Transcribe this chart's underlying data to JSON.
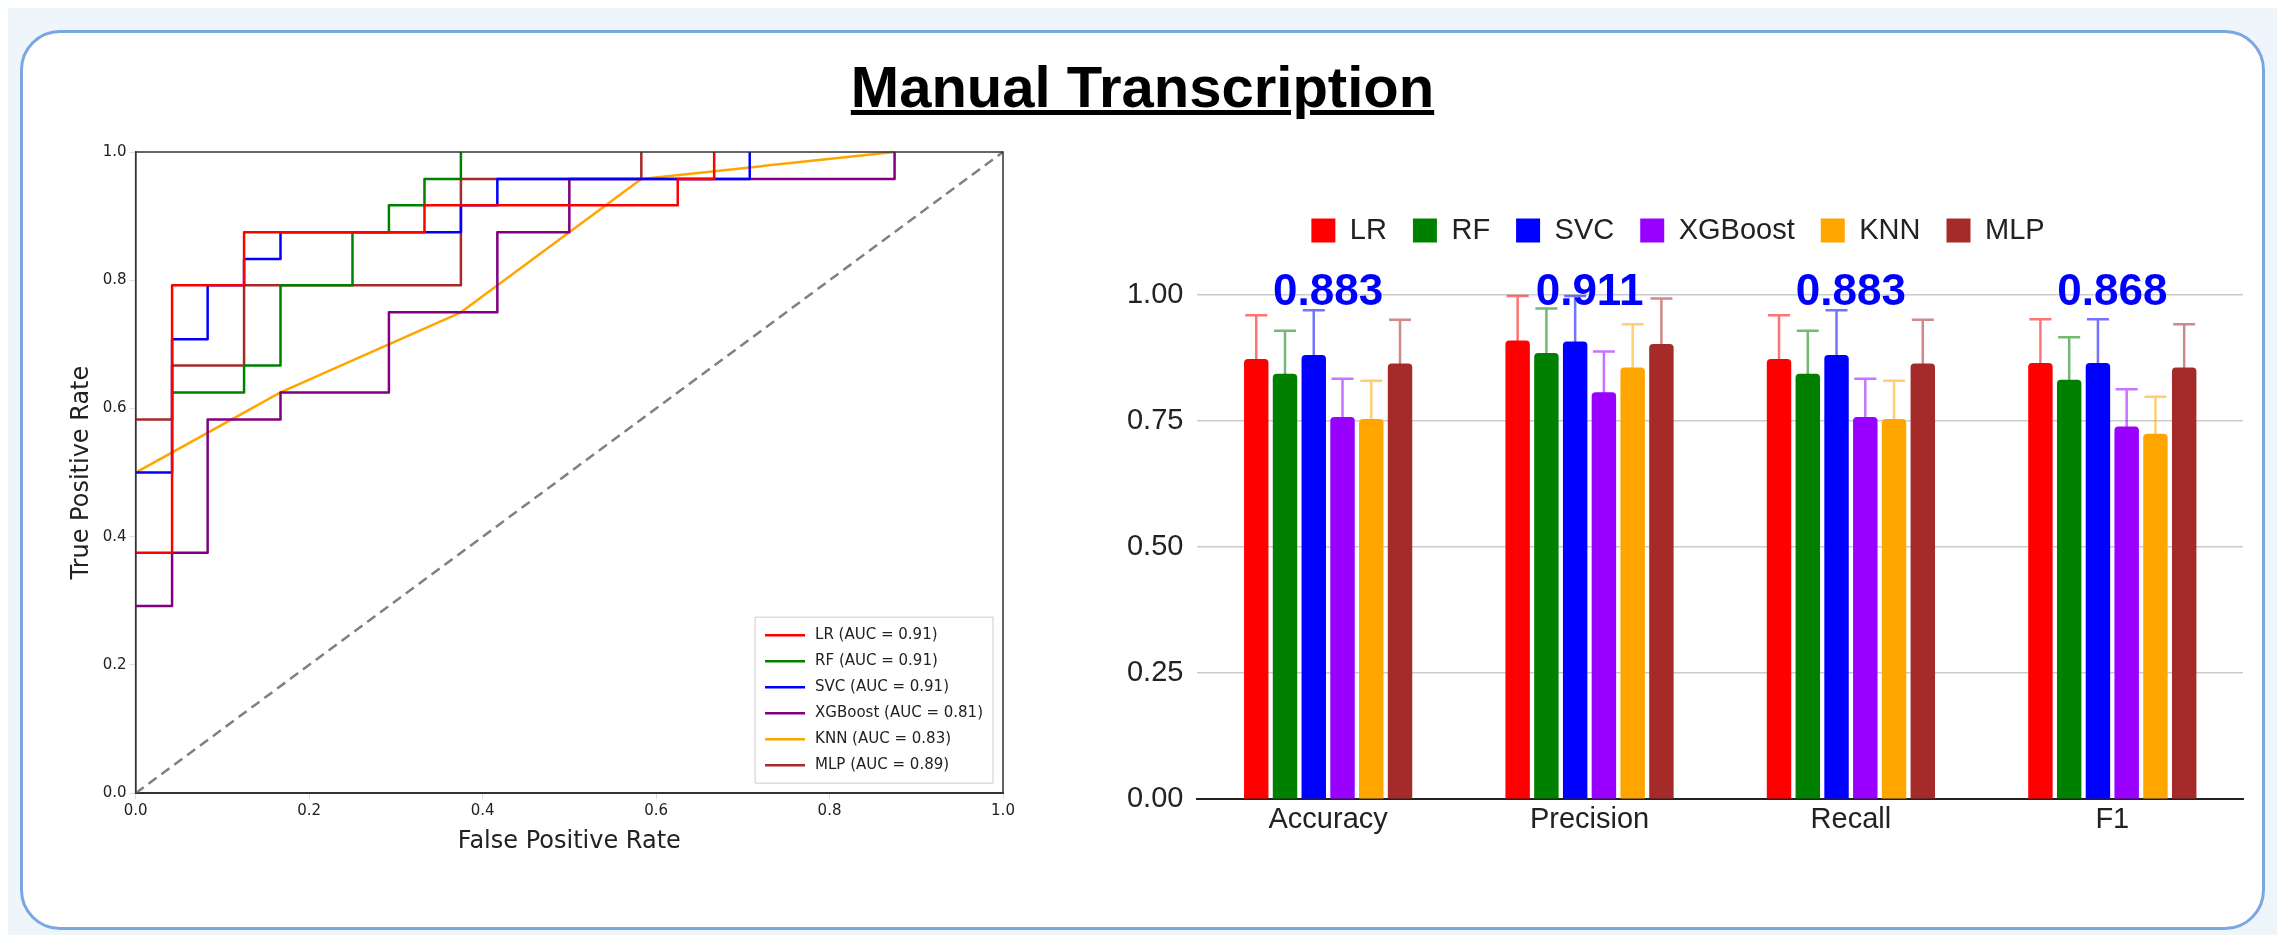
{
  "chart_data": [
    {
      "type": "line",
      "title": "Manual Transcription",
      "xlabel": "False Positive Rate",
      "ylabel": "True Positive Rate",
      "xlim": [
        0,
        1
      ],
      "ylim": [
        0,
        1
      ],
      "xticks": [
        {
          "value": 0,
          "label": "0.0"
        },
        {
          "value": 0.2,
          "label": "0.2"
        },
        {
          "value": 0.4,
          "label": "0.4"
        },
        {
          "value": 0.6,
          "label": "0.6"
        },
        {
          "value": 0.8,
          "label": "0.8"
        },
        {
          "value": 1,
          "label": "1.0"
        }
      ],
      "yticks": [
        {
          "value": 0,
          "label": "0.0"
        },
        {
          "value": 0.2,
          "label": "0.2"
        },
        {
          "value": 0.4,
          "label": "0.4"
        },
        {
          "value": 0.6,
          "label": "0.6"
        },
        {
          "value": 0.8,
          "label": "0.8"
        },
        {
          "value": 1,
          "label": "1.0"
        }
      ],
      "legend": "bottom right",
      "series": [
        {
          "name": "LR (AUC = 0.91)",
          "color": "#ff0000",
          "x": [
            0,
            0.042,
            0.042,
            0.125,
            0.125,
            0.333,
            0.333,
            0.625,
            0.625,
            0.667,
            0.667
          ],
          "values": [
            0.375,
            0.375,
            0.792,
            0.792,
            0.875,
            0.875,
            0.917,
            0.917,
            0.958,
            0.958,
            1
          ]
        },
        {
          "name": "RF (AUC = 0.91)",
          "color": "#008000",
          "x": [
            0.042,
            0.125,
            0.125,
            0.167,
            0.167,
            0.25,
            0.25,
            0.292,
            0.292,
            0.333,
            0.333,
            0.375,
            0.375
          ],
          "values": [
            0.625,
            0.625,
            0.667,
            0.667,
            0.792,
            0.792,
            0.875,
            0.875,
            0.917,
            0.917,
            0.958,
            0.958,
            1
          ]
        },
        {
          "name": "SVC (AUC = 0.91)",
          "color": "#0000ff",
          "x": [
            0,
            0.042,
            0.042,
            0.083,
            0.083,
            0.125,
            0.125,
            0.167,
            0.167,
            0.375,
            0.375,
            0.417,
            0.417,
            0.708,
            0.708
          ],
          "values": [
            0.5,
            0.5,
            0.708,
            0.708,
            0.792,
            0.792,
            0.833,
            0.833,
            0.875,
            0.875,
            0.917,
            0.917,
            0.958,
            0.958,
            1
          ]
        },
        {
          "name": "XGBoost (AUC = 0.81)",
          "color": "#800080",
          "x": [
            0,
            0.042,
            0.042,
            0.083,
            0.083,
            0.167,
            0.167,
            0.292,
            0.292,
            0.417,
            0.417,
            0.5,
            0.5,
            0.875,
            0.875
          ],
          "values": [
            0.292,
            0.292,
            0.375,
            0.375,
            0.583,
            0.583,
            0.625,
            0.625,
            0.75,
            0.75,
            0.875,
            0.875,
            0.958,
            0.958,
            1
          ]
        },
        {
          "name": "KNN (AUC = 0.83)",
          "color": "#ffa500",
          "x": [
            0,
            0.167,
            0.375,
            0.583,
            0.875
          ],
          "values": [
            0.5,
            0.625,
            0.75,
            0.958,
            1
          ]
        },
        {
          "name": "MLP (AUC = 0.89)",
          "color": "#a52a2a",
          "x": [
            0,
            0.042,
            0.042,
            0.125,
            0.125,
            0.375,
            0.375,
            0.583,
            0.583
          ],
          "values": [
            0.583,
            0.583,
            0.667,
            0.667,
            0.792,
            0.792,
            0.958,
            0.958,
            1
          ]
        },
        {
          "color": "#808080",
          "line_style": "dashed",
          "x": [
            0,
            1
          ],
          "values": [
            0,
            1
          ]
        }
      ]
    },
    {
      "type": "bar",
      "categories": [
        "Accuracy",
        "Precision",
        "Recall",
        "F1"
      ],
      "ylim": [
        0,
        1
      ],
      "yticks": [
        {
          "value": 0,
          "label": "0.00"
        },
        {
          "value": 0.25,
          "label": "0.25"
        },
        {
          "value": 0.5,
          "label": "0.50"
        },
        {
          "value": 0.75,
          "label": "0.75"
        },
        {
          "value": 1,
          "label": "1.00"
        }
      ],
      "grid": "y",
      "legend": "top",
      "annotations": [
        "0.883",
        "0.911",
        "0.883",
        "0.868"
      ],
      "series": [
        {
          "name": "LR",
          "color": "#ff0000",
          "values": [
            0.873,
            0.91,
            0.873,
            0.865
          ],
          "errors": [
            0.087,
            0.088,
            0.087,
            0.087
          ]
        },
        {
          "name": "RF",
          "color": "#008000",
          "values": [
            0.844,
            0.885,
            0.844,
            0.832
          ],
          "errors": [
            0.085,
            0.088,
            0.085,
            0.084
          ]
        },
        {
          "name": "SVC",
          "color": "#0000ff",
          "values": [
            0.881,
            0.908,
            0.881,
            0.865
          ],
          "errors": [
            0.089,
            0.09,
            0.089,
            0.087
          ]
        },
        {
          "name": "XGBoost",
          "color": "#9900ff",
          "values": [
            0.758,
            0.807,
            0.758,
            0.739
          ],
          "errors": [
            0.076,
            0.081,
            0.076,
            0.074
          ]
        },
        {
          "name": "KNN",
          "color": "#ffa500",
          "values": [
            0.754,
            0.856,
            0.754,
            0.725
          ],
          "errors": [
            0.076,
            0.086,
            0.076,
            0.073
          ]
        },
        {
          "name": "MLP",
          "color": "#a52a2a",
          "values": [
            0.864,
            0.903,
            0.864,
            0.856
          ],
          "errors": [
            0.087,
            0.09,
            0.087,
            0.086
          ]
        }
      ]
    }
  ]
}
